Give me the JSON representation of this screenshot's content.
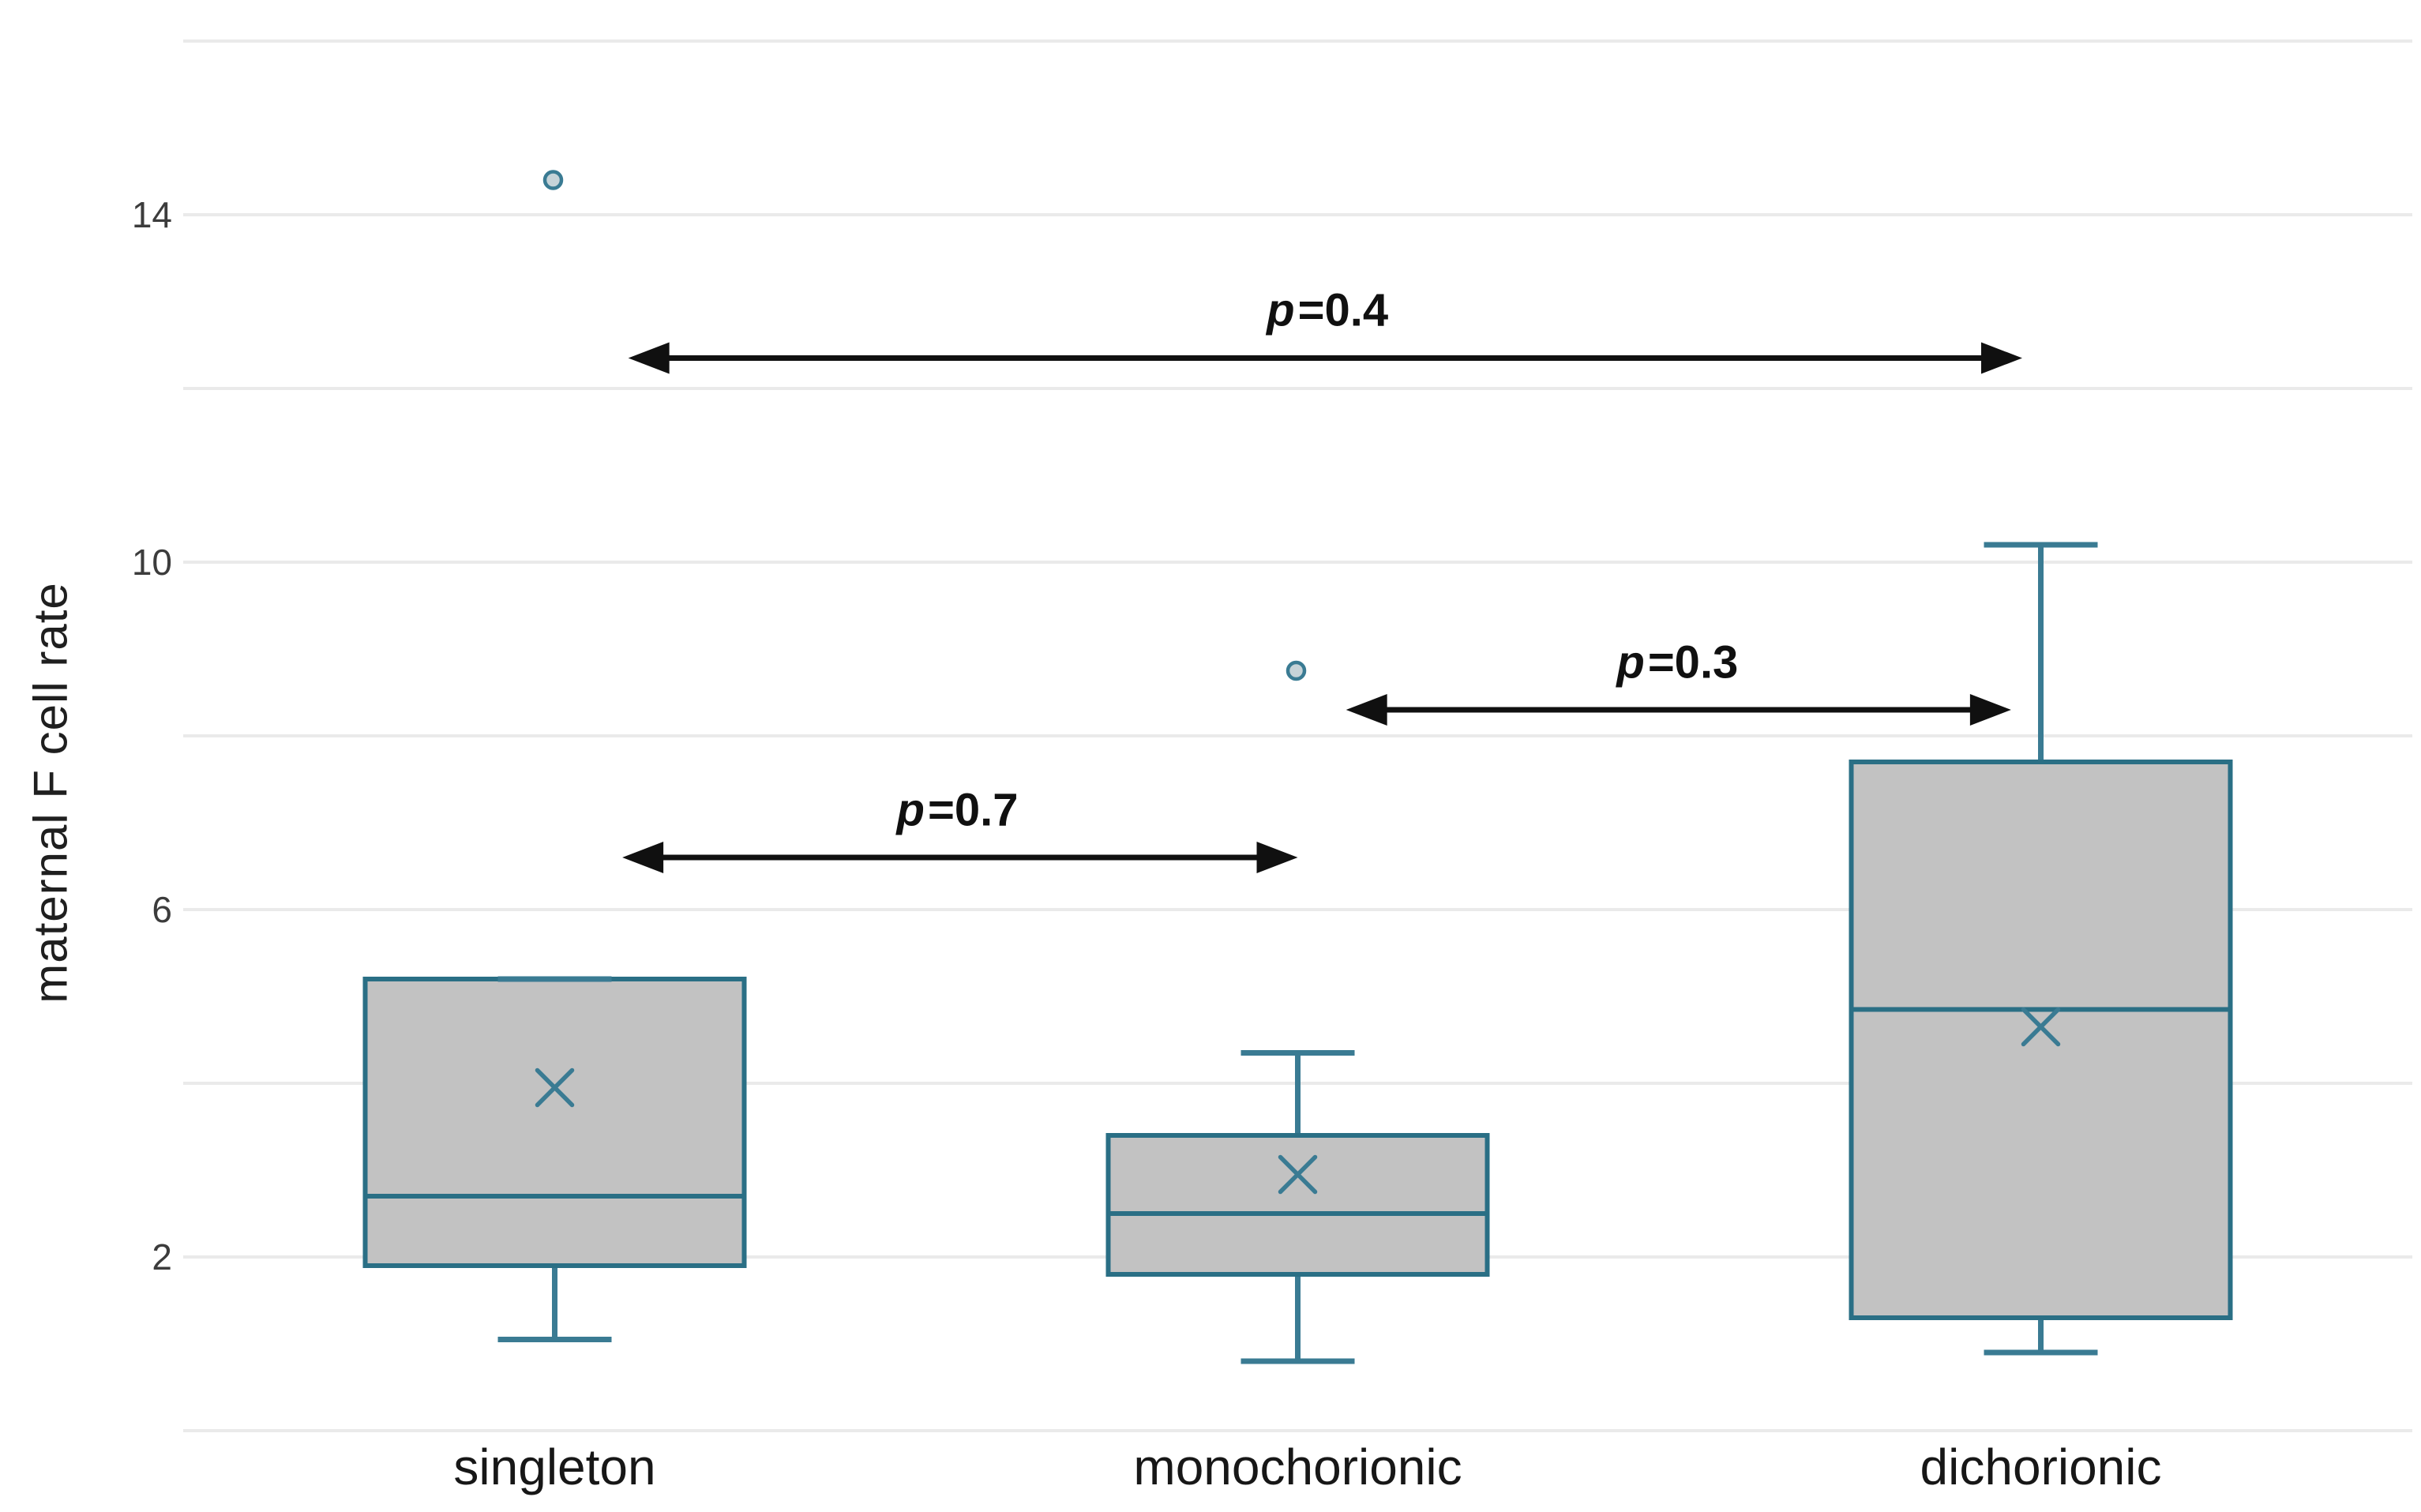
{
  "chart_data": {
    "type": "box",
    "title": "",
    "xlabel": "",
    "ylabel": "maternal F cell rate",
    "categories": [
      "singleton",
      "monochorionic",
      "dichorionic"
    ],
    "y_axis": {
      "min": 0,
      "max": 16,
      "grid_step": 2,
      "tick_values": [
        14,
        10,
        6,
        2
      ],
      "tick_labels": [
        "14",
        "10",
        "6",
        "2"
      ]
    },
    "grid": true,
    "legend": false,
    "series": [
      {
        "name": "singleton",
        "q1": 1.9,
        "median": 2.7,
        "q3": 5.2,
        "mean": 3.95,
        "whisker_low": 1.05,
        "whisker_high": 5.2,
        "outliers": [
          14.4
        ]
      },
      {
        "name": "monochorionic",
        "q1": 1.8,
        "median": 2.5,
        "q3": 3.4,
        "mean": 2.95,
        "whisker_low": 0.8,
        "whisker_high": 4.35,
        "outliers": [
          8.75
        ]
      },
      {
        "name": "dichorionic",
        "q1": 1.3,
        "median": 4.85,
        "q3": 7.7,
        "mean": 4.65,
        "whisker_low": 0.9,
        "whisker_high": 10.2,
        "outliers": []
      }
    ],
    "annotations": [
      {
        "label": "p=0.4",
        "arrow_y": 12.35,
        "x1_cat": 0.099,
        "x2_cat": 1.975,
        "label_x_cat": 1.04,
        "label_y": 12.9
      },
      {
        "label": "p=0.3",
        "arrow_y": 8.3,
        "x1_cat": 1.065,
        "x2_cat": 1.96,
        "label_x_cat": 1.511,
        "label_y": 8.85
      },
      {
        "label": "p=0.7",
        "arrow_y": 6.6,
        "x1_cat": 0.091,
        "x2_cat": 1.0,
        "label_x_cat": 0.542,
        "label_y": 7.15
      }
    ],
    "colors": {
      "box_border": "#2a6f85",
      "whisker": "#3a7b93",
      "box_fill": "#c2c2c2",
      "gridline": "#eaeaea",
      "outlier_fill": "#c6d3d8",
      "annotation": "#101010",
      "tick_text": "#3c3c3c",
      "category_text": "#171717",
      "background": "#ffffff"
    }
  }
}
